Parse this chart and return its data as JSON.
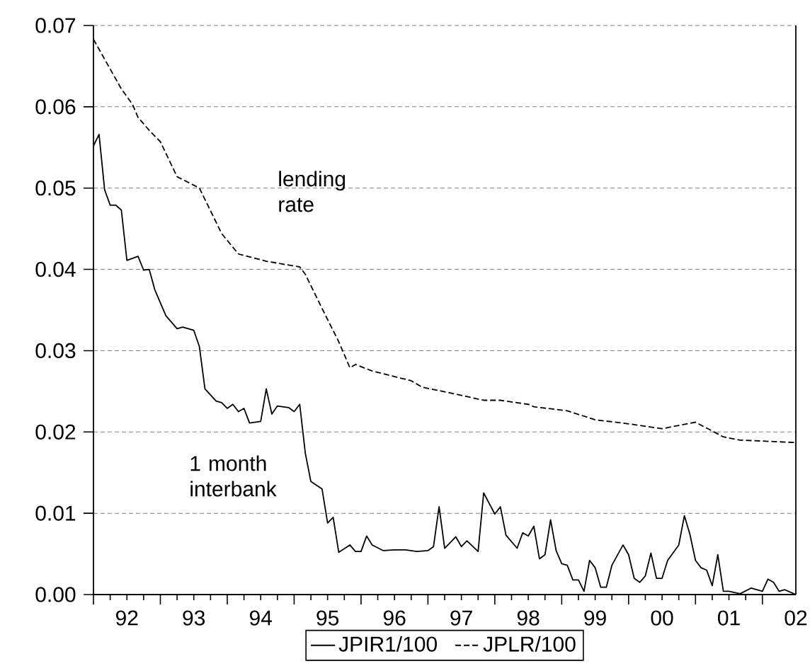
{
  "chart_data": {
    "type": "line",
    "xlim": [
      "1992-01",
      "2002-07"
    ],
    "ylim": [
      0,
      0.07
    ],
    "xticks": [
      {
        "value": "1992-01",
        "label": null
      },
      {
        "value": "1993-01",
        "label": null
      },
      {
        "value": "1994-01",
        "label": null
      },
      {
        "value": "1995-01",
        "label": null
      },
      {
        "value": "1996-01",
        "label": null
      },
      {
        "value": "1997-01",
        "label": null
      },
      {
        "value": "1998-01",
        "label": null
      },
      {
        "value": "1999-01",
        "label": null
      },
      {
        "value": "2000-01",
        "label": null
      },
      {
        "value": "2001-01",
        "label": null
      },
      {
        "value": "2002-01",
        "label": null
      },
      {
        "value": "1992-07",
        "label": "92"
      },
      {
        "value": "1993-07",
        "label": "93"
      },
      {
        "value": "1994-07",
        "label": "94"
      },
      {
        "value": "1995-07",
        "label": "95"
      },
      {
        "value": "1996-07",
        "label": "96"
      },
      {
        "value": "1997-07",
        "label": "97"
      },
      {
        "value": "1998-07",
        "label": "98"
      },
      {
        "value": "1999-07",
        "label": "99"
      },
      {
        "value": "2000-07",
        "label": "00"
      },
      {
        "value": "2001-07",
        "label": "01"
      },
      {
        "value": "2002-07",
        "label": "02"
      }
    ],
    "yticks": [
      {
        "value": 0,
        "label": "0.00"
      },
      {
        "value": 0.01,
        "label": "0.01"
      },
      {
        "value": 0.02,
        "label": "0.02"
      },
      {
        "value": 0.03,
        "label": "0.03"
      },
      {
        "value": 0.04,
        "label": "0.04"
      },
      {
        "value": 0.05,
        "label": "0.05"
      },
      {
        "value": 0.06,
        "label": "0.06"
      },
      {
        "value": 0.07,
        "label": "0.07"
      }
    ],
    "grid": "y",
    "legend": "bottom",
    "annotations": [
      "lending rate",
      "1 month interbank"
    ],
    "series": [
      {
        "name": "JPIR1/100",
        "color": "#000000",
        "line_style": "solid",
        "x": [
          "1992-01",
          "1992-02",
          "1992-03",
          "1992-04",
          "1992-05",
          "1992-06",
          "1992-07",
          "1992-09",
          "1992-10",
          "1992-11",
          "1992-12",
          "1993-02",
          "1993-04",
          "1993-05",
          "1993-07",
          "1993-08",
          "1993-09",
          "1993-11",
          "1993-12",
          "1994-01",
          "1994-02",
          "1994-03",
          "1994-04",
          "1994-05",
          "1994-07",
          "1994-08",
          "1994-09",
          "1994-10",
          "1994-12",
          "1995-01",
          "1995-02",
          "1995-03",
          "1995-04",
          "1995-06",
          "1995-07",
          "1995-08",
          "1995-09",
          "1995-11",
          "1995-12",
          "1996-01",
          "1996-02",
          "1996-03",
          "1996-05",
          "1996-07",
          "1996-09",
          "1996-11",
          "1997-01",
          "1997-02",
          "1997-03",
          "1997-04",
          "1997-06",
          "1997-07",
          "1997-08",
          "1997-10",
          "1997-11",
          "1998-01",
          "1998-02",
          "1998-03",
          "1998-05",
          "1998-06",
          "1998-07",
          "1998-08",
          "1998-09",
          "1998-10",
          "1998-11",
          "1998-12",
          "1999-01",
          "1999-02",
          "1999-03",
          "1999-04",
          "1999-05",
          "1999-06",
          "1999-07",
          "1999-08",
          "1999-09",
          "1999-10",
          "1999-12",
          "2000-01",
          "2000-02",
          "2000-03",
          "2000-04",
          "2000-05",
          "2000-06",
          "2000-07",
          "2000-08",
          "2000-10",
          "2000-11",
          "2000-12",
          "2001-01",
          "2001-02",
          "2001-03",
          "2001-04",
          "2001-05",
          "2001-06",
          "2001-07",
          "2001-09",
          "2001-11",
          "2002-01",
          "2002-02",
          "2002-03",
          "2002-04",
          "2002-05",
          "2002-07"
        ],
        "values": [
          0.0552,
          0.0566,
          0.0498,
          0.0479,
          0.0479,
          0.0473,
          0.0411,
          0.0416,
          0.0399,
          0.04,
          0.0375,
          0.0343,
          0.0327,
          0.0329,
          0.0325,
          0.0305,
          0.0253,
          0.0238,
          0.0236,
          0.0229,
          0.0234,
          0.0225,
          0.0229,
          0.0211,
          0.0213,
          0.0253,
          0.0222,
          0.0232,
          0.023,
          0.0225,
          0.0234,
          0.0174,
          0.0139,
          0.013,
          0.0088,
          0.0095,
          0.0052,
          0.0061,
          0.0053,
          0.0053,
          0.0072,
          0.0061,
          0.0054,
          0.0055,
          0.0055,
          0.0053,
          0.0054,
          0.0059,
          0.0108,
          0.0057,
          0.0071,
          0.0059,
          0.0066,
          0.0053,
          0.0125,
          0.0099,
          0.0108,
          0.0073,
          0.0057,
          0.0076,
          0.0072,
          0.0084,
          0.0044,
          0.0049,
          0.0092,
          0.0054,
          0.0038,
          0.0036,
          0.0018,
          0.0018,
          0.0004,
          0.0042,
          0.0033,
          0.0009,
          0.0009,
          0.0036,
          0.0061,
          0.0049,
          0.002,
          0.0015,
          0.0023,
          0.0051,
          0.002,
          0.002,
          0.0042,
          0.0061,
          0.0097,
          0.0074,
          0.0042,
          0.0033,
          0.003,
          0.0011,
          0.0049,
          0.0004,
          0.0004,
          0.0001,
          0.0008,
          0.0004,
          0.0019,
          0.0015,
          0.0004,
          0.0006,
          0.0
        ]
      },
      {
        "name": "JPLR/100",
        "color": "#000000",
        "line_style": "dashed",
        "x": [
          "1992-01",
          "1992-06",
          "1992-08",
          "1992-09",
          "1992-11",
          "1993-01",
          "1993-04",
          "1993-08",
          "1993-12",
          "1994-03",
          "1994-08",
          "1995-02",
          "1995-03",
          "1995-06",
          "1995-09",
          "1995-11",
          "1995-12",
          "1996-03",
          "1996-10",
          "1996-12",
          "1997-05",
          "1997-11",
          "1998-02",
          "1998-07",
          "1998-08",
          "1999-02",
          "1999-07",
          "2000-01",
          "2000-07",
          "2001-01",
          "2001-06",
          "2001-09",
          "2002-07"
        ],
        "values": [
          0.0683,
          0.0622,
          0.0603,
          0.0587,
          0.0571,
          0.0557,
          0.0514,
          0.05,
          0.0444,
          0.0419,
          0.041,
          0.0403,
          0.0394,
          0.0352,
          0.0311,
          0.0279,
          0.0283,
          0.0275,
          0.0263,
          0.0255,
          0.0248,
          0.0239,
          0.0239,
          0.0234,
          0.0231,
          0.0226,
          0.0215,
          0.021,
          0.0204,
          0.0212,
          0.0194,
          0.019,
          0.0187
        ]
      }
    ]
  }
}
